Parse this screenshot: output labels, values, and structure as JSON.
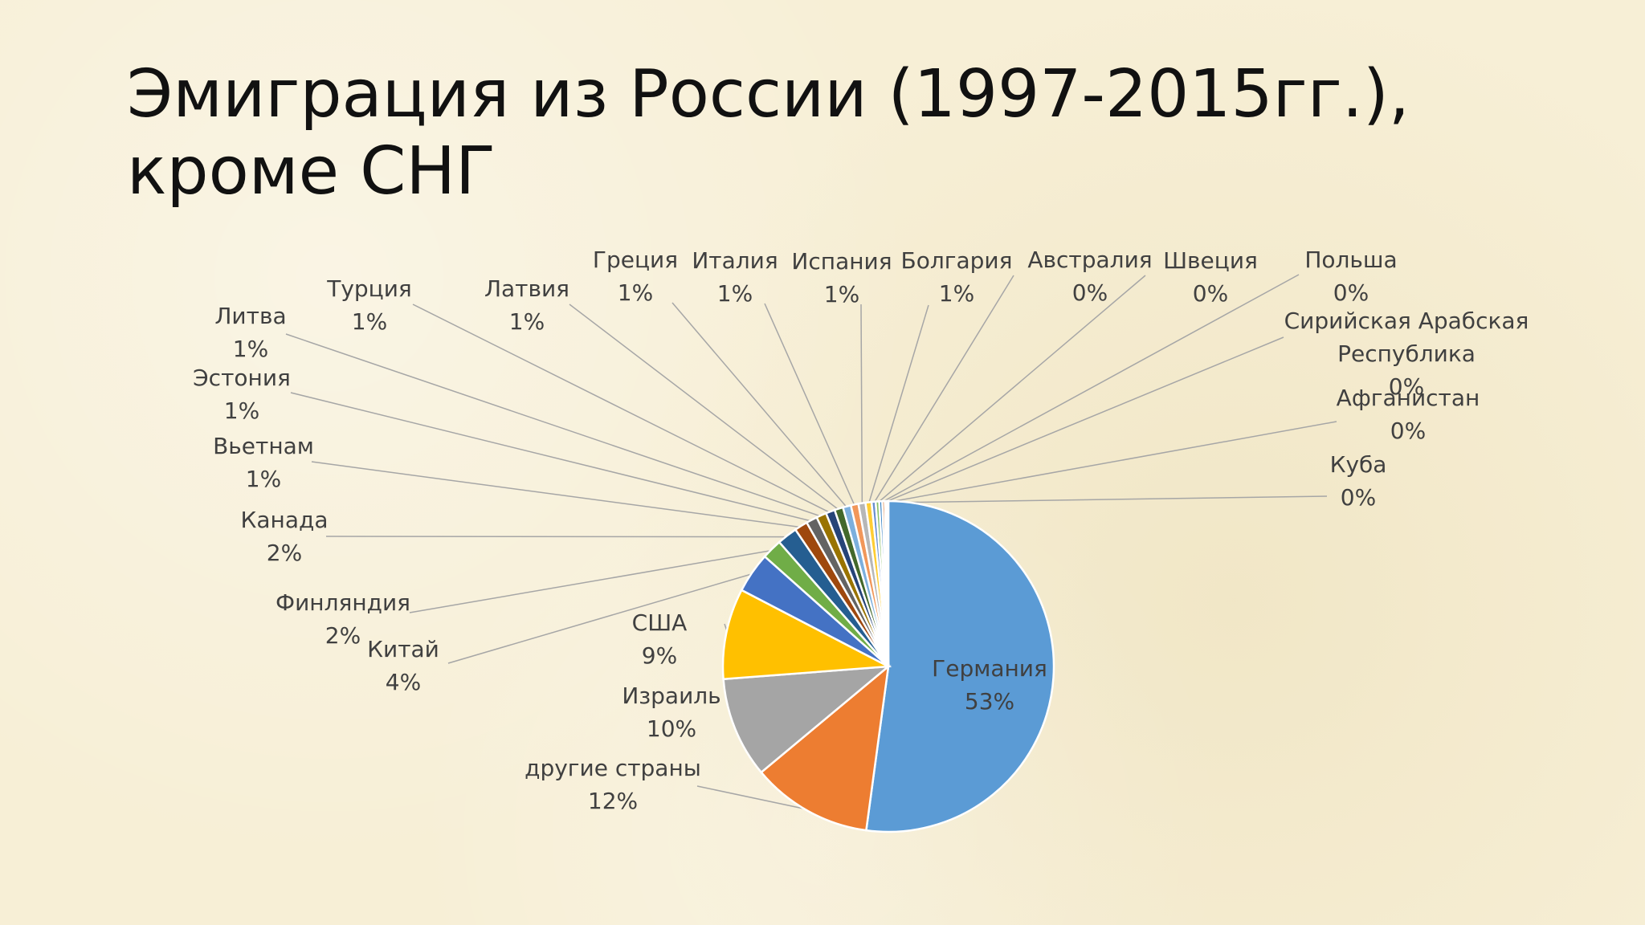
{
  "title_line1": "Эмиграция из России (1997-2015гг.),",
  "title_line2": "кроме СНГ",
  "chart_data": {
    "type": "pie",
    "title": "Эмиграция из России (1997-2015гг.), кроме СНГ",
    "slices": [
      {
        "name": "Германия",
        "pct_label": "53%",
        "value": 53.0,
        "color": "#5b9bd5"
      },
      {
        "name": "другие страны",
        "pct_label": "12%",
        "value": 12.0,
        "color": "#ed7d31"
      },
      {
        "name": "Израиль",
        "pct_label": "10%",
        "value": 10.0,
        "color": "#a5a5a5"
      },
      {
        "name": "США",
        "pct_label": "9%",
        "value": 9.0,
        "color": "#ffc000"
      },
      {
        "name": "Китай",
        "pct_label": "4%",
        "value": 4.0,
        "color": "#4472c4"
      },
      {
        "name": "Финляндия",
        "pct_label": "2%",
        "value": 2.0,
        "color": "#70ad47"
      },
      {
        "name": "Канада",
        "pct_label": "2%",
        "value": 2.0,
        "color": "#255e91"
      },
      {
        "name": "Вьетнам",
        "pct_label": "1%",
        "value": 1.3,
        "color": "#9e480e"
      },
      {
        "name": "Эстония",
        "pct_label": "1%",
        "value": 1.1,
        "color": "#636363"
      },
      {
        "name": "Литва",
        "pct_label": "1%",
        "value": 1.0,
        "color": "#997300"
      },
      {
        "name": "Турция",
        "pct_label": "1%",
        "value": 0.9,
        "color": "#264478"
      },
      {
        "name": "Латвия",
        "pct_label": "1%",
        "value": 0.85,
        "color": "#43682b"
      },
      {
        "name": "Греция",
        "pct_label": "1%",
        "value": 0.8,
        "color": "#7cafdd"
      },
      {
        "name": "Италия",
        "pct_label": "1%",
        "value": 0.75,
        "color": "#f1975a"
      },
      {
        "name": "Испания",
        "pct_label": "1%",
        "value": 0.7,
        "color": "#b7b7b7"
      },
      {
        "name": "Болгария",
        "pct_label": "1%",
        "value": 0.6,
        "color": "#ffcd33"
      },
      {
        "name": "Австралия",
        "pct_label": "0%",
        "value": 0.4,
        "color": "#698ed0"
      },
      {
        "name": "Швеция",
        "pct_label": "0%",
        "value": 0.35,
        "color": "#8cc168"
      },
      {
        "name": "Польша",
        "pct_label": "0%",
        "value": 0.3,
        "color": "#327dc2"
      },
      {
        "name": "Сирийская Арабская Республика",
        "pct_label": "0%",
        "value": 0.25,
        "color": "#d26012"
      },
      {
        "name": "Афганистан",
        "pct_label": "0%",
        "value": 0.2,
        "color": "#848484"
      },
      {
        "name": "Куба",
        "pct_label": "0%",
        "value": 0.15,
        "color": "#cc9a00"
      }
    ]
  }
}
